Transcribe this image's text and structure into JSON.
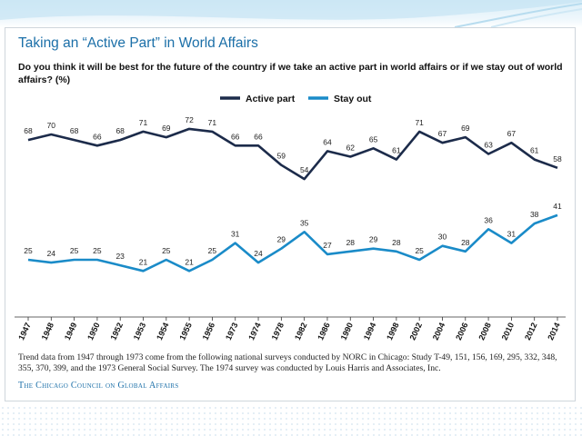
{
  "card": {
    "title": "Taking an “Active Part” in World Affairs",
    "question": "Do you think it will be best for the future of the country if we take an active part in world affairs or if we stay out of world affairs? (%)",
    "footnote": "Trend data from 1947 through 1973 come from the following national surveys conducted by NORC in Chicago: Study T-49, 151, 156, 169, 295, 332, 348, 355, 370, 399, and the 1973 General Social Survey. The 1974 survey was conducted by Louis Harris and Associates, Inc.",
    "source": "The Chicago Council on Global Affairs"
  },
  "chart_data": {
    "type": "line",
    "title": "Taking an “Active Part” in World Affairs",
    "xlabel": "",
    "ylabel": "%",
    "categories": [
      "1947",
      "1948",
      "1949",
      "1950",
      "1952",
      "1953",
      "1954",
      "1955",
      "1956",
      "1973",
      "1974",
      "1978",
      "1982",
      "1986",
      "1990",
      "1994",
      "1998",
      "2002",
      "2004",
      "2006",
      "2008",
      "2010",
      "2012",
      "2014"
    ],
    "series": [
      {
        "name": "Active part",
        "color": "#1c2b4a",
        "values": [
          68,
          70,
          68,
          66,
          68,
          71,
          69,
          72,
          71,
          66,
          66,
          59,
          54,
          64,
          62,
          65,
          61,
          71,
          67,
          69,
          63,
          67,
          61,
          58
        ]
      },
      {
        "name": "Stay out",
        "color": "#1a8bc8",
        "values": [
          25,
          24,
          25,
          25,
          23,
          21,
          25,
          21,
          25,
          31,
          24,
          29,
          35,
          27,
          28,
          29,
          28,
          25,
          30,
          28,
          36,
          31,
          38,
          41
        ]
      }
    ],
    "legend_position": "top-center",
    "grid": false
  }
}
